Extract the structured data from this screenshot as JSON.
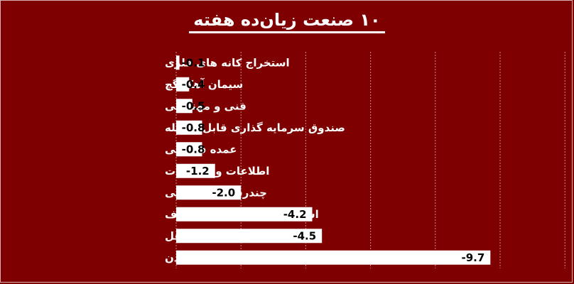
{
  "title": "۱۰ صنعت زیان‌ده هفته",
  "colors": {
    "background": "#7f0000",
    "bar": "#ffffff",
    "value_text": "#000000",
    "label_text": "#ffffff"
  },
  "chart_data": {
    "type": "bar",
    "orientation": "horizontal",
    "title": "۱۰ صنعت زیان‌ده هفته",
    "categories": [
      "استخراج کانه های فلزی",
      "سیمان آهک گچ",
      "فنی و مهندسی",
      "صندوق سرمایه گذاری قابل معامله",
      "عمده فروشی",
      "اطلاعات و ارتباطات",
      "چندرشته ای صنعتی",
      "استخراج نفت گاز جز اکتشاف",
      "سایر حمل و نقل",
      "استخراج سایر معادن"
    ],
    "values": [
      -0.1,
      -0.4,
      -0.5,
      -0.8,
      -0.8,
      -1.2,
      -2.0,
      -4.2,
      -4.5,
      -9.7
    ],
    "value_labels": [
      "-0.1",
      "-0.4",
      "-0.5",
      "-0.8",
      "-0.8",
      "-1.2",
      "-2.0",
      "-4.2",
      "-4.5",
      "-9.7"
    ],
    "xlim": [
      0,
      -12
    ],
    "grid": true,
    "legend": "none"
  }
}
